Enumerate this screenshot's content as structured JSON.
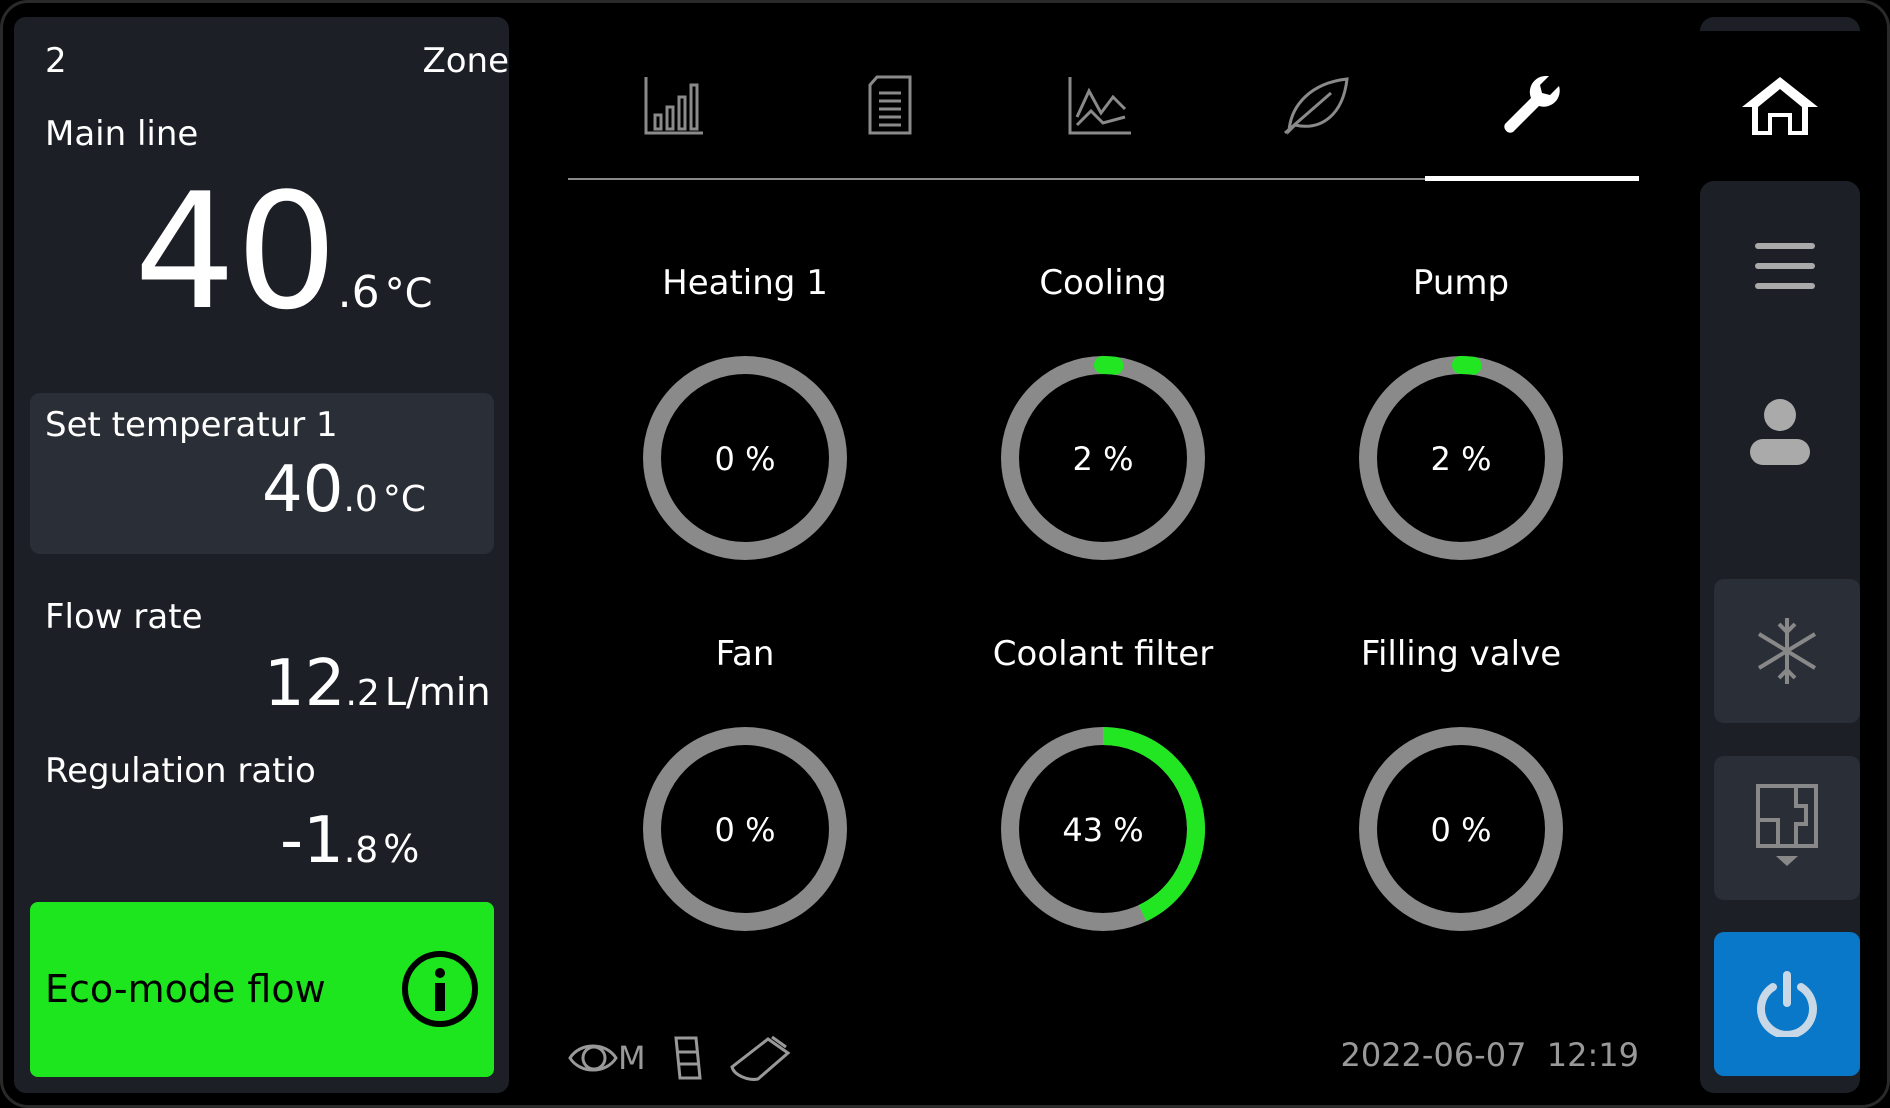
{
  "zone": {
    "number": "2",
    "label": "Zone"
  },
  "main_line": {
    "label": "Main line",
    "int": "40",
    "dec": ".6",
    "unit": "°C"
  },
  "set_temp": {
    "label": "Set temperatur 1",
    "int": "40",
    "dec": ".0",
    "unit": "°C"
  },
  "flow_rate": {
    "label": "Flow rate",
    "int": "12",
    "dec": ".2",
    "unit": "L/min"
  },
  "regulation": {
    "label": "Regulation ratio",
    "int": "-1",
    "dec": ".8",
    "unit": "%"
  },
  "eco": {
    "label": "Eco-mode flow",
    "icon": "info-icon",
    "color": "#1ee61e"
  },
  "tabs": [
    {
      "icon": "bar-chart-icon"
    },
    {
      "icon": "document-icon"
    },
    {
      "icon": "line-chart-icon"
    },
    {
      "icon": "leaf-icon"
    },
    {
      "icon": "wrench-icon",
      "active": true
    }
  ],
  "gauges": [
    {
      "label": "Heating 1",
      "value": 0,
      "text": "0 %"
    },
    {
      "label": "Cooling",
      "value": 2,
      "text": "2 %"
    },
    {
      "label": "Pump",
      "value": 2,
      "text": "2 %"
    },
    {
      "label": "Fan",
      "value": 0,
      "text": "0 %"
    },
    {
      "label": "Coolant filter",
      "value": 43,
      "text": "43 %"
    },
    {
      "label": "Filling valve",
      "value": 0,
      "text": "0 %"
    }
  ],
  "colors": {
    "gauge_track": "#8a8a8a",
    "gauge_fill": "#22e622",
    "power": "#0a78c8"
  },
  "status": {
    "icons": [
      "eye-icon",
      "memory-icon",
      "usb-icon"
    ],
    "memory_letter": "M",
    "date": "2022-06-07",
    "time": "12:19"
  },
  "sidebar": {
    "items": [
      "home-icon",
      "menu-icon",
      "user-icon",
      "snowflake-icon",
      "floorplan-icon",
      "power-icon"
    ]
  }
}
